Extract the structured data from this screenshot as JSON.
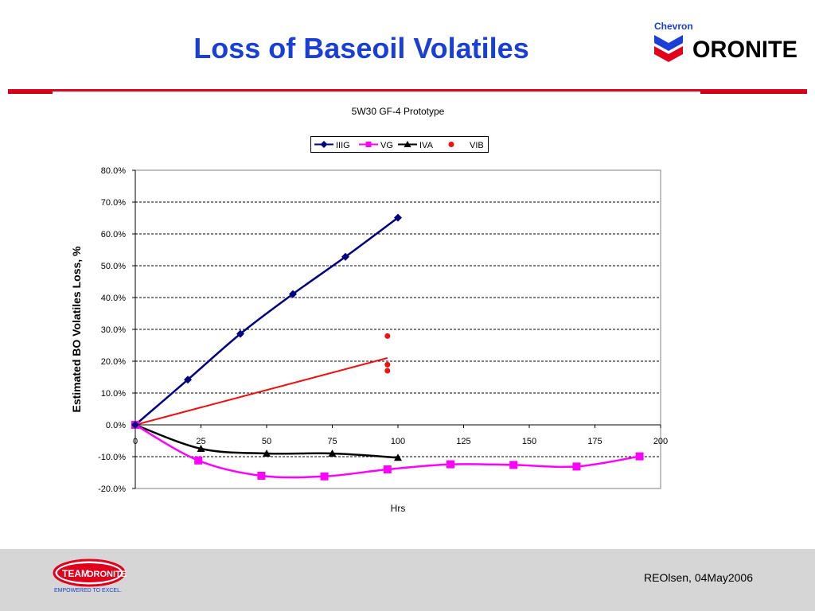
{
  "slide": {
    "title": "Loss of Baseoil Volatiles",
    "brand_top": "Chevron",
    "brand_main": "ORONITE",
    "footer_text": "REOlsen, 04May2006",
    "footer_logo_team": "TEAM",
    "footer_logo_brand": "ORONITE",
    "footer_tagline": "EMPOWERED TO EXCEL.",
    "colors": {
      "title": "#1a3fd6",
      "rule": "#e0001b",
      "footer_bg": "#d6d6d6"
    }
  },
  "chart_data": {
    "type": "line",
    "title": "5W30 GF-4 Prototype",
    "xlabel": "Hrs",
    "ylabel": "Estimated BO Volatiles Loss, %",
    "xlim": [
      0,
      200
    ],
    "ylim": [
      -20,
      80
    ],
    "x_ticks": [
      "0",
      "25",
      "50",
      "75",
      "100",
      "125",
      "150",
      "175",
      "200"
    ],
    "x_tick_values": [
      0,
      25,
      50,
      75,
      100,
      125,
      150,
      175,
      200
    ],
    "y_ticks": [
      "80.0%",
      "70.0%",
      "60.0%",
      "50.0%",
      "40.0%",
      "30.0%",
      "20.0%",
      "10.0%",
      "0.0%",
      "-10.0%",
      "-20.0%"
    ],
    "y_tick_values": [
      80,
      70,
      60,
      50,
      40,
      30,
      20,
      10,
      0,
      -10,
      -20
    ],
    "grid": "horizontal dashed",
    "legend_placement": "top",
    "series": [
      {
        "name": "IIIG",
        "color": "#000080",
        "marker": "diamond",
        "line": true,
        "points": [
          [
            0,
            0
          ],
          [
            20,
            14.2
          ],
          [
            40,
            28.6
          ],
          [
            60,
            41.1
          ],
          [
            80,
            52.8
          ],
          [
            100,
            65.1
          ]
        ]
      },
      {
        "name": "VG",
        "color": "#ff00ff",
        "marker": "square",
        "line": true,
        "points": [
          [
            0,
            0
          ],
          [
            24,
            -11.2
          ],
          [
            48,
            -16.0
          ],
          [
            72,
            -16.2
          ],
          [
            96,
            -14.0
          ],
          [
            120,
            -12.4
          ],
          [
            144,
            -12.6
          ],
          [
            168,
            -13.1
          ],
          [
            192,
            -9.9
          ]
        ]
      },
      {
        "name": "IVA",
        "color": "#000000",
        "marker": "triangle",
        "line": true,
        "points": [
          [
            0,
            0
          ],
          [
            25,
            -7.5
          ],
          [
            50,
            -9.0
          ],
          [
            75,
            -9.0
          ],
          [
            100,
            -10.3
          ]
        ]
      },
      {
        "name": "VIB",
        "color": "#ee1111",
        "marker": "circle",
        "line": false,
        "points": [
          [
            96,
            27.9
          ],
          [
            96,
            18.9
          ],
          [
            96,
            17.0
          ]
        ]
      }
    ],
    "trendline": {
      "series": "VIB",
      "color": "#ee1111",
      "points": [
        [
          0,
          0
        ],
        [
          96,
          21.0
        ]
      ]
    }
  }
}
